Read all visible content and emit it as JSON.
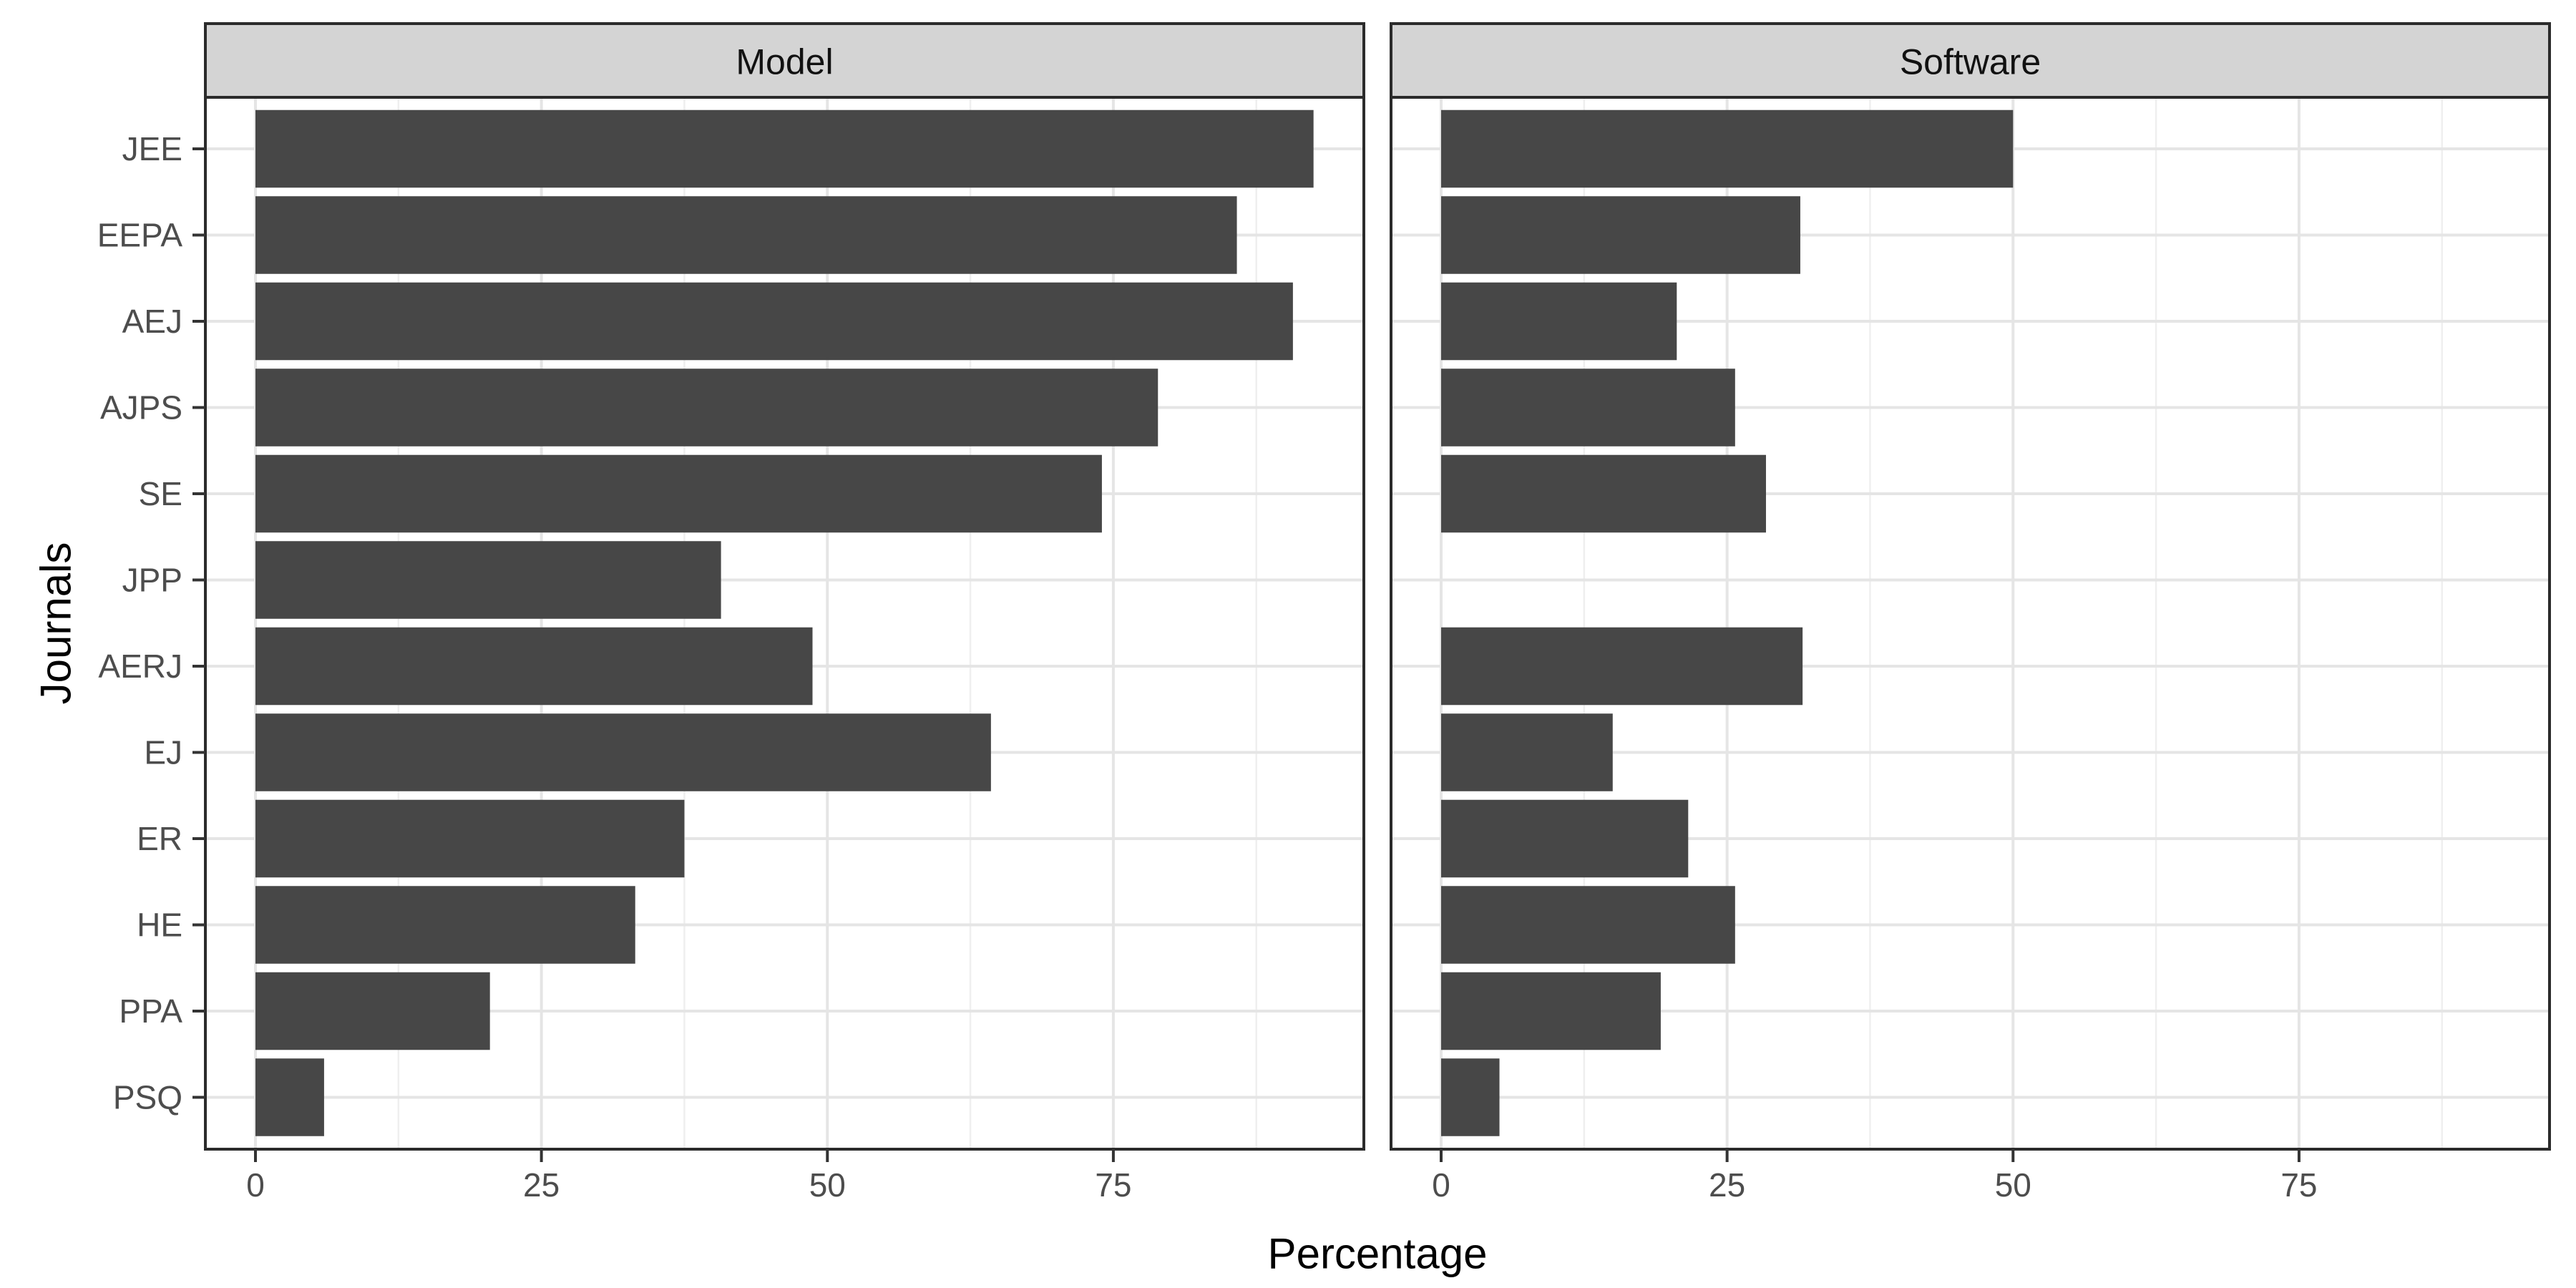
{
  "chart_data": {
    "type": "bar",
    "orientation": "horizontal",
    "title": "",
    "xlabel": "Percentage",
    "ylabel": "Journals",
    "categories": [
      "JEE",
      "EEPA",
      "AEJ",
      "AJPS",
      "SE",
      "JPP",
      "AERJ",
      "EJ",
      "ER",
      "HE",
      "PPA",
      "PSQ"
    ],
    "facets": [
      {
        "label": "Model",
        "values": [
          92.5,
          85.8,
          90.7,
          78.9,
          74.0,
          40.7,
          48.7,
          64.3,
          37.5,
          33.2,
          20.5,
          6.0
        ]
      },
      {
        "label": "Software",
        "values": [
          50.0,
          31.4,
          20.6,
          25.7,
          28.4,
          0.0,
          31.6,
          15.0,
          21.6,
          25.7,
          19.2,
          5.1
        ]
      }
    ],
    "x_ticks": [
      0,
      25,
      50,
      75
    ],
    "x_minor_ticks": [
      12.5,
      37.5,
      62.5,
      87.5
    ],
    "xlim": [
      -4.4,
      96.9
    ],
    "grid": "major-and-minor",
    "legend": "none"
  },
  "colors": {
    "bar_fill": "#474747",
    "strip_bg": "#d4d4d4",
    "panel_border": "#2b2b2b",
    "grid_major": "#e5e5e5",
    "grid_minor": "#efefef",
    "tick_mark": "#333333",
    "tick_label": "#4d4d4d",
    "strip_text": "#111111",
    "panel_bg": "#ffffff"
  }
}
